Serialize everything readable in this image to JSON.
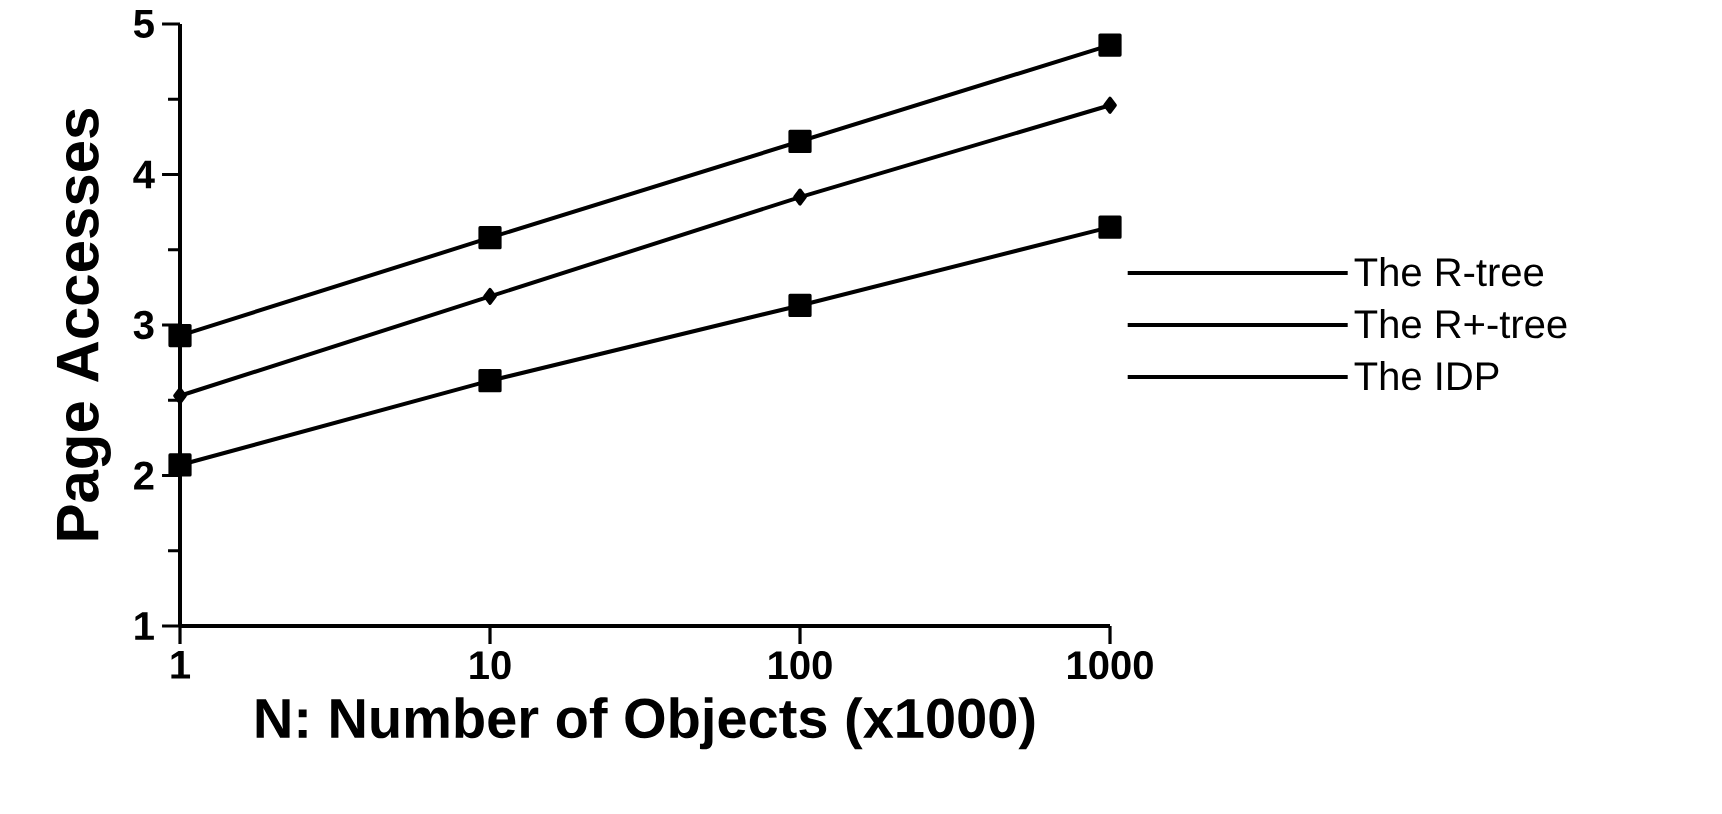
{
  "chart_data": {
    "type": "line",
    "xlabel": "N: Number of Objects (x1000)",
    "ylabel": "Page Accesses",
    "x": [
      1,
      10,
      100,
      1000
    ],
    "log": "x",
    "xlim": [
      1,
      1000
    ],
    "ylim": [
      1,
      5
    ],
    "xticks": [
      1,
      10,
      100,
      1000
    ],
    "yticks": [
      1,
      2,
      3,
      4,
      5
    ],
    "grid": false,
    "legend": "right",
    "line_style": "solid",
    "series": [
      {
        "name": "The R-tree",
        "color": "#000000",
        "marker": "square",
        "values": [
          2.93,
          3.58,
          4.22,
          4.86
        ]
      },
      {
        "name": "The R+-tree",
        "color": "#000000",
        "marker": "diamond",
        "values": [
          2.53,
          3.19,
          3.85,
          4.46
        ]
      },
      {
        "name": "The IDP",
        "color": "#000000",
        "marker": "square",
        "values": [
          2.07,
          2.63,
          3.13,
          3.65
        ]
      }
    ]
  }
}
